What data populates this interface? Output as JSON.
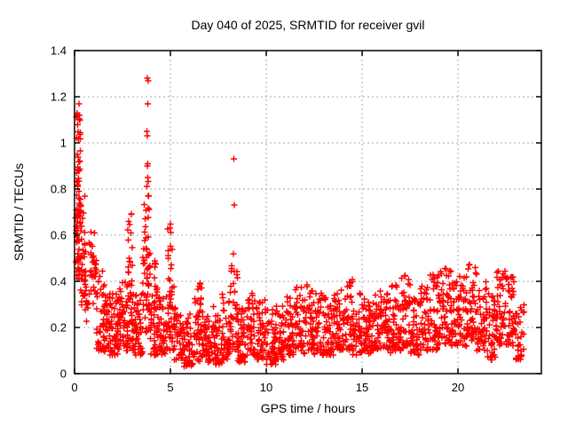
{
  "window": {
    "background": "#ffffff"
  },
  "chart_data": {
    "type": "scatter",
    "title": "Day 040 of 2025, SRMTID for receiver gvil",
    "xlabel": "GPS time / hours",
    "ylabel": "SRMTID / TECUs",
    "xlim": [
      0,
      24.35
    ],
    "ylim": [
      0,
      1.4
    ],
    "xticks": [
      0,
      5,
      10,
      15,
      20
    ],
    "xtick_labels": [
      "0",
      "5",
      "10",
      "15",
      "20"
    ],
    "yticks": [
      0,
      0.2,
      0.4,
      0.6,
      0.8,
      1,
      1.2,
      1.4
    ],
    "ytick_labels": [
      "0",
      "0.2",
      "0.4",
      "0.6",
      "0.8",
      "1",
      "1.2",
      "1.4"
    ],
    "grid": true,
    "legend_position": "none",
    "marker": {
      "shape": "plus",
      "size": 7,
      "color": "#ff0000"
    },
    "series_name": "SRMTID",
    "outlier_points": [
      [
        3.8,
        1.28
      ],
      [
        3.84,
        1.27
      ],
      [
        3.81,
        1.17
      ],
      [
        3.78,
        1.05
      ],
      [
        3.8,
        1.03
      ],
      [
        3.83,
        0.91
      ],
      [
        3.79,
        0.9
      ],
      [
        8.3,
        0.93
      ],
      [
        8.33,
        0.73
      ],
      [
        8.28,
        0.52
      ],
      [
        0.22,
        1.17
      ],
      [
        0.25,
        1.12
      ]
    ],
    "dense_band_boxes": [
      [
        0.03,
        0.18,
        0.45,
        0.85,
        10,
        1.0
      ],
      [
        0.1,
        0.32,
        0.55,
        1.16,
        55,
        1.0
      ],
      [
        0.1,
        0.35,
        0.32,
        0.58,
        15,
        1.0
      ],
      [
        0.3,
        0.55,
        0.28,
        0.78,
        22,
        1.2
      ],
      [
        0.5,
        0.85,
        0.22,
        0.62,
        26,
        1.3
      ],
      [
        0.82,
        1.15,
        0.28,
        0.64,
        26,
        1.1
      ],
      [
        1.15,
        1.55,
        0.1,
        0.45,
        40,
        1.5
      ],
      [
        1.55,
        1.95,
        0.08,
        0.35,
        42,
        1.5
      ],
      [
        1.95,
        2.35,
        0.08,
        0.38,
        42,
        1.5
      ],
      [
        2.35,
        2.75,
        0.1,
        0.42,
        42,
        1.5
      ],
      [
        2.75,
        3.1,
        0.1,
        0.45,
        40,
        1.5
      ],
      [
        2.78,
        3.02,
        0.45,
        0.7,
        13,
        1.0
      ],
      [
        3.1,
        3.55,
        0.08,
        0.35,
        42,
        1.5
      ],
      [
        3.55,
        3.95,
        0.15,
        0.55,
        45,
        1.4
      ],
      [
        3.62,
        3.92,
        0.55,
        0.85,
        16,
        1.0
      ],
      [
        3.95,
        4.4,
        0.08,
        0.38,
        42,
        1.5
      ],
      [
        4.15,
        4.32,
        0.38,
        0.5,
        6,
        1.0
      ],
      [
        4.4,
        4.8,
        0.08,
        0.35,
        40,
        1.5
      ],
      [
        4.8,
        5.2,
        0.1,
        0.45,
        42,
        1.5
      ],
      [
        4.85,
        5.1,
        0.45,
        0.65,
        11,
        1.0
      ],
      [
        5.2,
        5.7,
        0.06,
        0.3,
        44,
        1.5
      ],
      [
        5.7,
        6.2,
        0.03,
        0.26,
        44,
        1.5
      ],
      [
        6.2,
        6.7,
        0.05,
        0.33,
        44,
        1.5
      ],
      [
        6.4,
        6.62,
        0.3,
        0.42,
        7,
        1.0
      ],
      [
        6.7,
        7.2,
        0.05,
        0.28,
        44,
        1.5
      ],
      [
        7.2,
        7.7,
        0.04,
        0.3,
        44,
        1.5
      ],
      [
        7.7,
        8.1,
        0.06,
        0.35,
        38,
        1.5
      ],
      [
        8.1,
        8.5,
        0.1,
        0.47,
        38,
        1.3
      ],
      [
        8.5,
        9.0,
        0.05,
        0.3,
        44,
        1.5
      ],
      [
        9.0,
        9.5,
        0.08,
        0.35,
        44,
        1.5
      ],
      [
        9.5,
        10.0,
        0.06,
        0.32,
        44,
        1.5
      ],
      [
        10.0,
        10.5,
        0.04,
        0.28,
        44,
        1.5
      ],
      [
        10.5,
        11.0,
        0.06,
        0.3,
        44,
        1.5
      ],
      [
        11.0,
        11.5,
        0.08,
        0.35,
        44,
        1.5
      ],
      [
        11.5,
        12.0,
        0.08,
        0.38,
        44,
        1.5
      ],
      [
        12.0,
        12.5,
        0.1,
        0.4,
        44,
        1.5
      ],
      [
        12.5,
        13.0,
        0.08,
        0.35,
        44,
        1.5
      ],
      [
        13.0,
        13.5,
        0.08,
        0.33,
        44,
        1.5
      ],
      [
        13.5,
        14.0,
        0.1,
        0.37,
        44,
        1.5
      ],
      [
        14.0,
        14.5,
        0.1,
        0.42,
        44,
        1.5
      ],
      [
        14.5,
        15.0,
        0.08,
        0.35,
        44,
        1.5
      ],
      [
        15.0,
        15.5,
        0.08,
        0.33,
        44,
        1.5
      ],
      [
        15.5,
        16.0,
        0.1,
        0.37,
        44,
        1.5
      ],
      [
        16.0,
        16.5,
        0.08,
        0.35,
        44,
        1.5
      ],
      [
        16.5,
        17.0,
        0.1,
        0.4,
        44,
        1.5
      ],
      [
        17.0,
        17.5,
        0.1,
        0.43,
        44,
        1.5
      ],
      [
        17.5,
        18.0,
        0.08,
        0.35,
        44,
        1.5
      ],
      [
        18.0,
        18.5,
        0.1,
        0.38,
        44,
        1.5
      ],
      [
        18.5,
        19.0,
        0.1,
        0.43,
        44,
        1.4
      ],
      [
        19.0,
        19.5,
        0.12,
        0.46,
        44,
        1.4
      ],
      [
        19.5,
        20.0,
        0.12,
        0.45,
        44,
        1.4
      ],
      [
        20.0,
        20.5,
        0.12,
        0.44,
        44,
        1.4
      ],
      [
        20.5,
        21.0,
        0.14,
        0.48,
        44,
        1.4
      ],
      [
        21.0,
        21.5,
        0.1,
        0.4,
        44,
        1.5
      ],
      [
        21.5,
        22.0,
        0.06,
        0.35,
        44,
        1.5
      ],
      [
        22.0,
        22.5,
        0.12,
        0.45,
        44,
        1.3
      ],
      [
        22.5,
        23.0,
        0.12,
        0.44,
        44,
        1.3
      ],
      [
        23.0,
        23.45,
        0.06,
        0.3,
        30,
        1.5
      ]
    ]
  },
  "style": {
    "border_color": "#000000",
    "grid_color": "#a8a8a8",
    "text_color": "#000000",
    "background": "#ffffff"
  }
}
